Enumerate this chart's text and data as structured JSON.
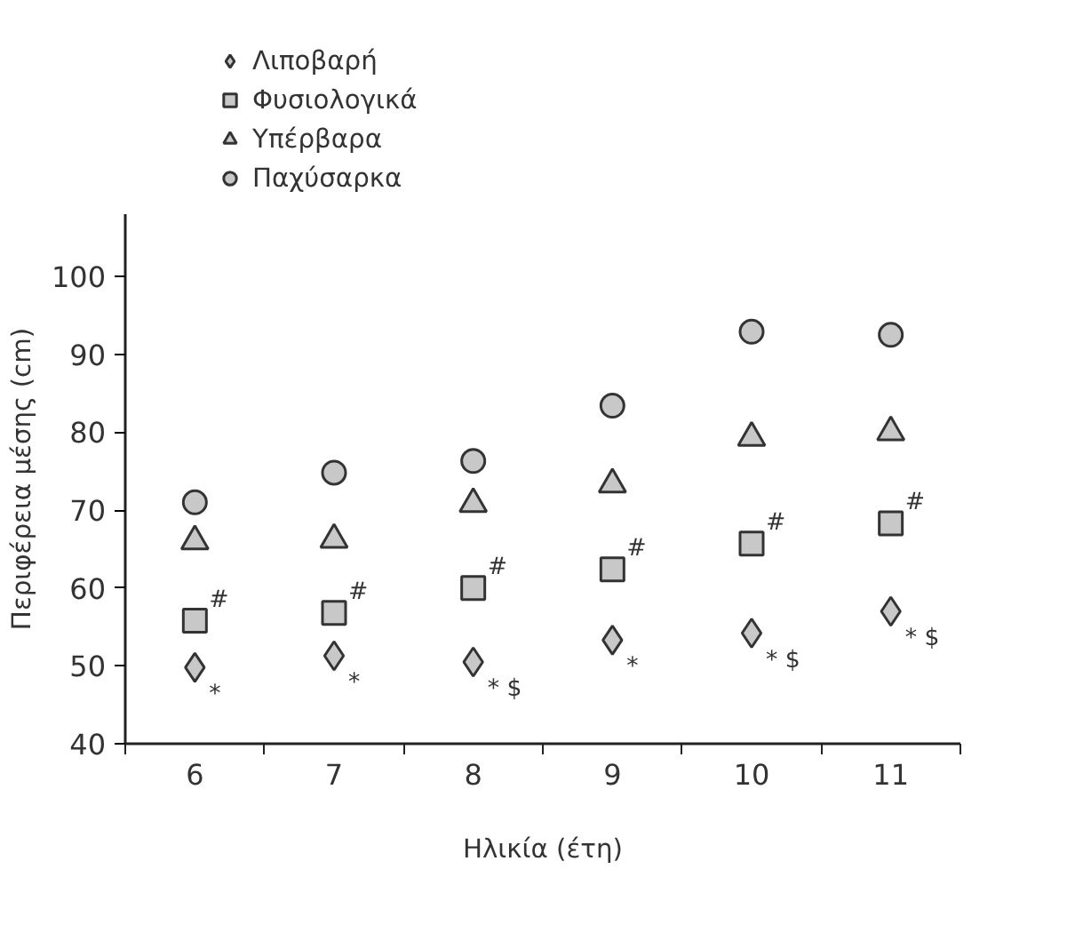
{
  "chart_data": {
    "type": "scatter",
    "xlabel": "Ηλικία (έτη)",
    "ylabel": "Περιφέρεια μέσης (cm)",
    "categories": [
      "6",
      "7",
      "8",
      "9",
      "10",
      "11"
    ],
    "ylim": [
      40,
      108
    ],
    "yticks": [
      40,
      50,
      60,
      70,
      80,
      90,
      100
    ],
    "grid": false,
    "legend": "top",
    "series": [
      {
        "name": "Λιποβαρή",
        "color": "#c8c8c8",
        "marker": "diamond",
        "values": [
          49.8,
          51.3,
          50.5,
          53.3,
          54.2,
          57.0
        ]
      },
      {
        "name": "Φυσιολογικά",
        "color": "#c8c8c8",
        "marker": "square",
        "values": [
          55.8,
          56.8,
          60.0,
          62.4,
          65.7,
          68.3
        ]
      },
      {
        "name": "Υπέρβαρα",
        "color": "#c8c8c8",
        "marker": "triangle",
        "values": [
          66.0,
          66.2,
          70.8,
          73.3,
          79.3,
          80.0
        ]
      },
      {
        "name": "Παχύσαρκα",
        "color": "#c8c8c8",
        "marker": "circle",
        "values": [
          71.0,
          74.8,
          76.3,
          83.4,
          92.9,
          92.5
        ]
      }
    ],
    "annotations": [
      {
        "text": "*",
        "x": "6",
        "y": 49.8
      },
      {
        "text": "*",
        "x": "7",
        "y": 51.3
      },
      {
        "text": "* $",
        "x": "8",
        "y": 50.5
      },
      {
        "text": "*",
        "x": "9",
        "y": 53.3
      },
      {
        "text": "* $",
        "x": "10",
        "y": 54.2
      },
      {
        "text": "* $",
        "x": "11",
        "y": 57.0
      },
      {
        "text": "#",
        "x": "6",
        "y": 55.8
      },
      {
        "text": "#",
        "x": "7",
        "y": 56.8
      },
      {
        "text": "#",
        "x": "8",
        "y": 60.0
      },
      {
        "text": "#",
        "x": "9",
        "y": 62.4
      },
      {
        "text": "#",
        "x": "10",
        "y": 65.7
      },
      {
        "text": "#",
        "x": "11",
        "y": 68.3
      }
    ]
  }
}
